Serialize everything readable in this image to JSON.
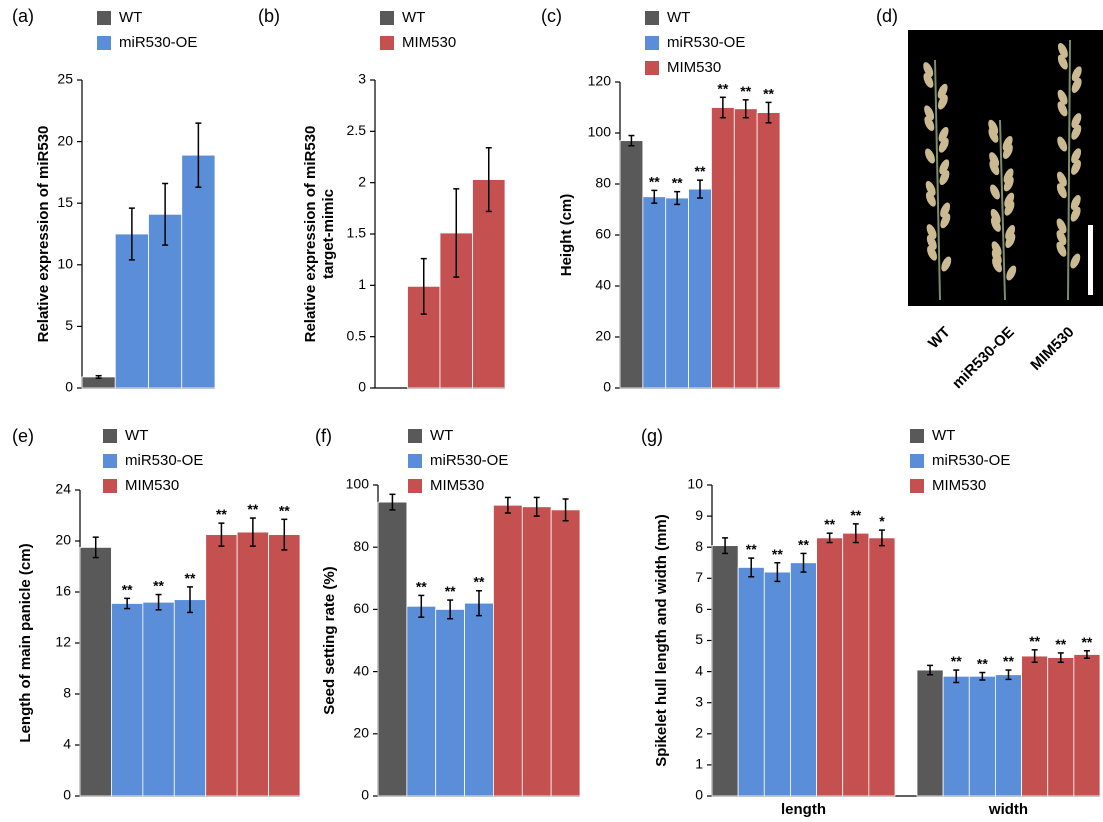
{
  "chart_data": [
    {
      "type": "bar",
      "panel": "(a)",
      "ylabel": "Relative expression of miR530",
      "categories": [
        null
      ],
      "ylim": [
        0,
        25
      ],
      "yticks": [
        0,
        5,
        10,
        15,
        20,
        25
      ],
      "series": [
        {
          "name": "WT",
          "color": "#595959",
          "values": [
            [
              0.9
            ]
          ],
          "errors": [
            [
              0.1
            ]
          ],
          "marks": [
            [
              null
            ]
          ]
        },
        {
          "name": "miR530-OE",
          "color": "#5a8ed8",
          "values": [
            [
              12.5,
              14.1,
              18.9
            ]
          ],
          "errors": [
            [
              2.1,
              2.5,
              2.6
            ]
          ],
          "marks": [
            [
              null,
              null,
              null
            ]
          ]
        }
      ]
    },
    {
      "type": "bar",
      "panel": "(b)",
      "ylabel": [
        "Relative expression of miR530",
        "target-mimic"
      ],
      "categories": [
        null
      ],
      "ylim": [
        0,
        3
      ],
      "yticks": [
        0,
        0.5,
        1,
        1.5,
        2,
        2.5,
        3
      ],
      "series": [
        {
          "name": "WT",
          "color": "#595959",
          "values": [
            [
              null
            ]
          ],
          "errors": [
            [
              null
            ]
          ],
          "marks": [
            [
              null
            ]
          ]
        },
        {
          "name": "MIM530",
          "color": "#c55050",
          "values": [
            [
              0.99,
              1.51,
              2.03
            ]
          ],
          "errors": [
            [
              0.27,
              0.43,
              0.31
            ]
          ],
          "marks": [
            [
              null,
              null,
              null
            ]
          ]
        }
      ]
    },
    {
      "type": "bar",
      "panel": "(c)",
      "ylabel": "Height (cm)",
      "categories": [
        null
      ],
      "ylim": [
        0,
        120
      ],
      "yticks": [
        0,
        20,
        40,
        60,
        80,
        100,
        120
      ],
      "series": [
        {
          "name": "WT",
          "color": "#595959",
          "values": [
            [
              97
            ]
          ],
          "errors": [
            [
              2
            ]
          ],
          "marks": [
            [
              null
            ]
          ]
        },
        {
          "name": "miR530-OE",
          "color": "#5a8ed8",
          "values": [
            [
              75,
              74.5,
              78
            ]
          ],
          "errors": [
            [
              2.5,
              2.5,
              3.5
            ]
          ],
          "marks": [
            [
              "**",
              "**",
              "**"
            ]
          ]
        },
        {
          "name": "MIM530",
          "color": "#c55050",
          "values": [
            [
              110,
              109.5,
              108
            ]
          ],
          "errors": [
            [
              4,
              3.5,
              4
            ]
          ],
          "marks": [
            [
              "**",
              "**",
              "**"
            ]
          ]
        }
      ]
    },
    {
      "type": "bar",
      "panel": "(e)",
      "ylabel": "Length of main panicle (cm)",
      "categories": [
        null
      ],
      "ylim": [
        0,
        24
      ],
      "yticks": [
        0,
        4,
        8,
        12,
        16,
        20,
        24
      ],
      "series": [
        {
          "name": "WT",
          "color": "#595959",
          "values": [
            [
              19.5
            ]
          ],
          "errors": [
            [
              0.8
            ]
          ],
          "marks": [
            [
              null
            ]
          ]
        },
        {
          "name": "miR530-OE",
          "color": "#5a8ed8",
          "values": [
            [
              15.1,
              15.2,
              15.4
            ]
          ],
          "errors": [
            [
              0.4,
              0.6,
              1.0
            ]
          ],
          "marks": [
            [
              "**",
              "**",
              "**"
            ]
          ]
        },
        {
          "name": "MIM530",
          "color": "#c55050",
          "values": [
            [
              20.5,
              20.7,
              20.5
            ]
          ],
          "errors": [
            [
              0.9,
              1.1,
              1.2
            ]
          ],
          "marks": [
            [
              "**",
              "**",
              "**"
            ]
          ]
        }
      ]
    },
    {
      "type": "bar",
      "panel": "(f)",
      "ylabel": "Seed setting rate (%)",
      "categories": [
        null
      ],
      "ylim": [
        0,
        100
      ],
      "yticks": [
        0,
        20,
        40,
        60,
        80,
        100
      ],
      "series": [
        {
          "name": "WT",
          "color": "#595959",
          "values": [
            [
              94.5
            ]
          ],
          "errors": [
            [
              2.5
            ]
          ],
          "marks": [
            [
              null
            ]
          ]
        },
        {
          "name": "miR530-OE",
          "color": "#5a8ed8",
          "values": [
            [
              61,
              60,
              62
            ]
          ],
          "errors": [
            [
              3.5,
              3,
              4
            ]
          ],
          "marks": [
            [
              "**",
              "**",
              "**"
            ]
          ]
        },
        {
          "name": "MIM530",
          "color": "#c55050",
          "values": [
            [
              93.5,
              93,
              92
            ]
          ],
          "errors": [
            [
              2.5,
              3,
              3.5
            ]
          ],
          "marks": [
            [
              null,
              null,
              null
            ]
          ]
        }
      ]
    },
    {
      "type": "bar",
      "panel": "(g)",
      "ylabel": "Spikelet hull length and width (mm)",
      "categories": [
        "length",
        "width"
      ],
      "ylim": [
        0,
        10
      ],
      "yticks": [
        0,
        1,
        2,
        3,
        4,
        5,
        6,
        7,
        8,
        9,
        10
      ],
      "series": [
        {
          "name": "WT",
          "color": "#595959",
          "values": [
            [
              8.05
            ],
            [
              4.05
            ]
          ],
          "errors": [
            [
              0.25
            ],
            [
              0.15
            ]
          ],
          "marks": [
            [
              null
            ],
            [
              null
            ]
          ]
        },
        {
          "name": "miR530-OE",
          "color": "#5a8ed8",
          "values": [
            [
              7.35,
              7.2,
              7.5
            ],
            [
              3.85,
              3.85,
              3.9
            ]
          ],
          "errors": [
            [
              0.3,
              0.3,
              0.3
            ],
            [
              0.2,
              0.12,
              0.15
            ]
          ],
          "marks": [
            [
              "**",
              "**",
              "**"
            ],
            [
              "**",
              "**",
              "**"
            ]
          ]
        },
        {
          "name": "MIM530",
          "color": "#c55050",
          "values": [
            [
              8.3,
              8.45,
              8.3
            ],
            [
              4.5,
              4.45,
              4.55
            ]
          ],
          "errors": [
            [
              0.15,
              0.3,
              0.25
            ],
            [
              0.2,
              0.15,
              0.12
            ]
          ],
          "marks": [
            [
              "**",
              "**",
              "*"
            ],
            [
              "**",
              "**",
              "**"
            ]
          ]
        }
      ]
    }
  ],
  "photo": {
    "panel": "(d)",
    "labels": [
      "WT",
      "miR530-OE",
      "MIM530"
    ]
  }
}
